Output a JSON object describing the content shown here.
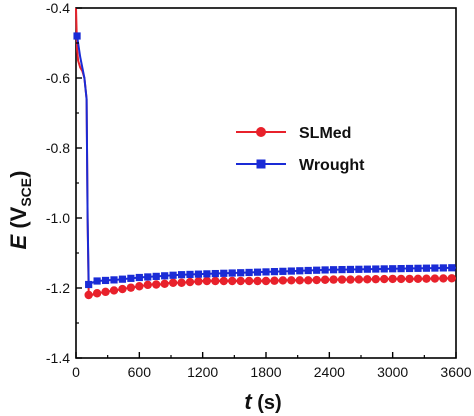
{
  "chart_data": {
    "type": "line",
    "title": "",
    "xlabel": {
      "main": "t",
      "unit": " (s)"
    },
    "ylabel": {
      "main": "E",
      "open": " (V",
      "sub": "SCE",
      "close": ")"
    },
    "xlim": [
      0,
      3600
    ],
    "ylim": [
      -1.4,
      -0.4
    ],
    "xticks": [
      0,
      600,
      1200,
      1800,
      2400,
      3000,
      3600
    ],
    "xtick_labels": [
      "0",
      "600",
      "1200",
      "1800",
      "2400",
      "3000",
      "3600"
    ],
    "yticks": [
      -1.4,
      -1.2,
      -1.0,
      -0.8,
      -0.6,
      -0.4
    ],
    "ytick_labels": [
      "-1.4",
      "-1.2",
      "-1.0",
      "-0.8",
      "-0.6",
      "-0.4"
    ],
    "grid": false,
    "legend_position": "center-right",
    "series": [
      {
        "name": "SLMed",
        "color": "#e8212b",
        "marker": "circle",
        "x": [
          0,
          10,
          20,
          40,
          60,
          80,
          100,
          110,
          120,
          150,
          200,
          300,
          400,
          500,
          600,
          700,
          800,
          900,
          1000,
          1200,
          1400,
          1600,
          1800,
          2000,
          2200,
          2400,
          2600,
          2800,
          3000,
          3200,
          3400,
          3600
        ],
        "y": [
          -0.4,
          -0.52,
          -0.55,
          -0.57,
          -0.58,
          -0.6,
          -0.66,
          -1.0,
          -1.22,
          -1.22,
          -1.215,
          -1.21,
          -1.205,
          -1.2,
          -1.195,
          -1.19,
          -1.19,
          -1.185,
          -1.185,
          -1.18,
          -1.18,
          -1.18,
          -1.18,
          -1.178,
          -1.178,
          -1.176,
          -1.176,
          -1.175,
          -1.174,
          -1.174,
          -1.173,
          -1.172
        ]
      },
      {
        "name": "Wrought",
        "color": "#1a2bd6",
        "marker": "square",
        "x": [
          0,
          10,
          20,
          40,
          60,
          80,
          100,
          110,
          120,
          150,
          200,
          300,
          400,
          500,
          600,
          700,
          800,
          900,
          1000,
          1200,
          1400,
          1600,
          1800,
          2000,
          2200,
          2400,
          2600,
          2800,
          3000,
          3200,
          3400,
          3600
        ],
        "y": [
          -0.48,
          -0.48,
          -0.5,
          -0.54,
          -0.57,
          -0.6,
          -0.66,
          -1.0,
          -1.19,
          -1.185,
          -1.18,
          -1.178,
          -1.176,
          -1.173,
          -1.17,
          -1.168,
          -1.166,
          -1.164,
          -1.162,
          -1.16,
          -1.158,
          -1.156,
          -1.154,
          -1.152,
          -1.15,
          -1.148,
          -1.147,
          -1.146,
          -1.145,
          -1.144,
          -1.143,
          -1.142
        ]
      }
    ]
  }
}
